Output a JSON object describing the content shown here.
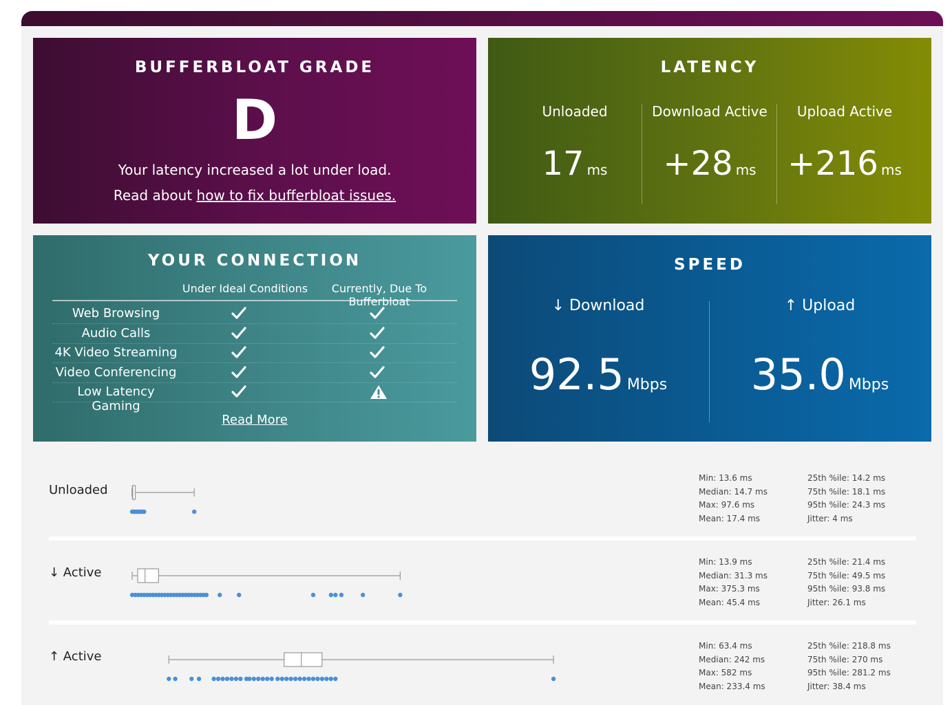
{
  "grade": {
    "title": "BUFFERBLOAT GRADE",
    "letter": "D",
    "message": "Your latency increased a lot under load.",
    "read_prefix": "Read about ",
    "read_link": "how to fix bufferbloat issues."
  },
  "latency": {
    "title": "LATENCY",
    "columns": [
      {
        "label": "Unloaded",
        "value": "17",
        "unit": "ms"
      },
      {
        "label": "Download Active",
        "value": "+28",
        "unit": "ms"
      },
      {
        "label": "Upload Active",
        "value": "+216",
        "unit": "ms"
      }
    ]
  },
  "connection": {
    "title": "YOUR CONNECTION",
    "headers": [
      "Under Ideal Conditions",
      "Currently, Due To Bufferbloat"
    ],
    "rows": [
      {
        "name": "Web Browsing",
        "ideal": "check-icon",
        "current": "check-icon"
      },
      {
        "name": "Audio Calls",
        "ideal": "check-icon",
        "current": "check-icon"
      },
      {
        "name": "4K Video Streaming",
        "ideal": "check-icon",
        "current": "check-icon"
      },
      {
        "name": "Video Conferencing",
        "ideal": "check-icon",
        "current": "check-icon"
      },
      {
        "name": "Low Latency Gaming",
        "ideal": "check-icon",
        "current": "warning-icon"
      }
    ],
    "read_more": "Read More"
  },
  "speed": {
    "title": "SPEED",
    "download": {
      "label": "↓ Download",
      "value": "92.5",
      "unit": "Mbps"
    },
    "upload": {
      "label": "↑ Upload",
      "value": "35.0",
      "unit": "Mbps"
    }
  },
  "colors": {
    "dot": "#4a90d9",
    "box": "#999999"
  },
  "plots": [
    {
      "label": "Unloaded",
      "whisker_min": 13.6,
      "q1": 14.2,
      "median": 14.7,
      "q3": 18.1,
      "whisker_max": 97.6,
      "points": [
        14,
        16,
        18,
        20,
        22,
        24,
        26,
        28,
        30,
        97.6
      ],
      "stats_left": [
        "Min: 13.6 ms",
        "Median: 14.7 ms",
        "Max: 97.6 ms",
        "Mean: 17.4 ms"
      ],
      "stats_right": [
        "25th %ile: 14.2 ms",
        "75th %ile: 18.1 ms",
        "95th %ile: 24.3 ms",
        "Jitter: 4 ms"
      ]
    },
    {
      "label": "↓ Active",
      "whisker_min": 13.9,
      "q1": 21.4,
      "median": 31.3,
      "q3": 49.5,
      "whisker_max": 375.3,
      "points": [
        14,
        18,
        22,
        26,
        30,
        34,
        38,
        42,
        46,
        50,
        54,
        58,
        62,
        66,
        70,
        74,
        78,
        82,
        86,
        90,
        94,
        98,
        102,
        106,
        110,
        114,
        132,
        158,
        258,
        282,
        288,
        296,
        325,
        375.3
      ],
      "stats_left": [
        "Min: 13.9 ms",
        "Median: 31.3 ms",
        "Max: 375.3 ms",
        "Mean: 45.4 ms"
      ],
      "stats_right": [
        "25th %ile: 21.4 ms",
        "75th %ile: 49.5 ms",
        "95th %ile: 93.8 ms",
        "Jitter: 26.1 ms"
      ]
    },
    {
      "label": "↑ Active",
      "whisker_min": 63.4,
      "q1": 218.8,
      "median": 242,
      "q3": 270,
      "whisker_max": 582,
      "points": [
        63.4,
        72,
        94,
        104,
        124,
        130,
        136,
        142,
        148,
        154,
        160,
        168,
        172,
        178,
        184,
        190,
        196,
        202,
        210,
        216,
        222,
        228,
        234,
        240,
        246,
        252,
        258,
        264,
        270,
        276,
        282,
        288,
        582
      ],
      "stats_left": [
        "Min: 63.4 ms",
        "Median: 242 ms",
        "Max: 582 ms",
        "Mean: 233.4 ms"
      ],
      "stats_right": [
        "25th %ile: 218.8 ms",
        "75th %ile: 270 ms",
        "95th %ile: 281.2 ms",
        "Jitter: 38.4 ms"
      ]
    }
  ]
}
